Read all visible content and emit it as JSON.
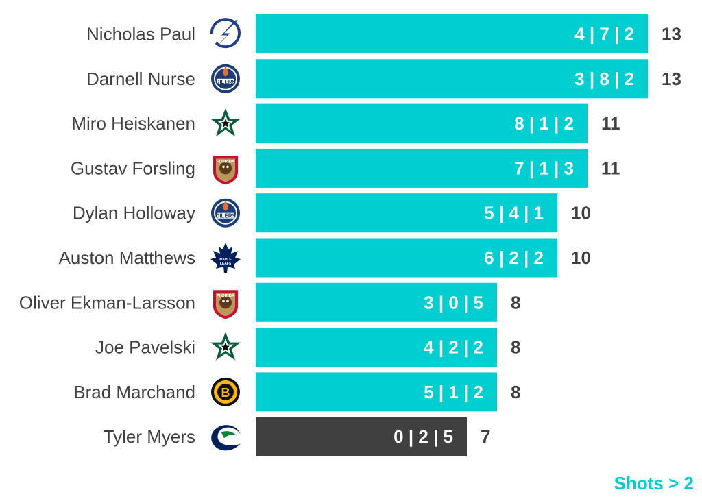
{
  "chart_data": {
    "type": "bar",
    "orientation": "horizontal",
    "categories": [
      "Nicholas Paul",
      "Darnell Nurse",
      "Miro Heiskanen",
      "Gustav Forsling",
      "Dylan Holloway",
      "Auston Matthews",
      "Oliver Ekman-Larsson",
      "Joe Pavelski",
      "Brad Marchand",
      "Tyler Myers"
    ],
    "values": [
      13,
      13,
      11,
      11,
      10,
      10,
      8,
      8,
      8,
      7
    ],
    "bar_labels": [
      "4 | 7 | 2",
      "3 | 8 | 2",
      "8 | 1 | 2",
      "7 | 1 | 3",
      "5 | 4 | 1",
      "6 | 2 | 2",
      "3 | 0 | 5",
      "4 | 2 | 2",
      "5 | 1 | 2",
      "0 | 2 | 5"
    ],
    "teams": [
      "lightning",
      "oilers",
      "stars",
      "panthers",
      "oilers",
      "maple-leafs",
      "panthers",
      "stars",
      "bruins",
      "canucks"
    ],
    "highlight": [
      true,
      true,
      true,
      true,
      true,
      true,
      true,
      true,
      true,
      false
    ],
    "xlim": [
      0,
      13
    ],
    "grid": false,
    "title": "",
    "xlabel": "",
    "ylabel": ""
  },
  "colors": {
    "highlight": "#00CED1",
    "other": "#404040",
    "text": "#404040"
  },
  "footnote": "Shots > 2"
}
